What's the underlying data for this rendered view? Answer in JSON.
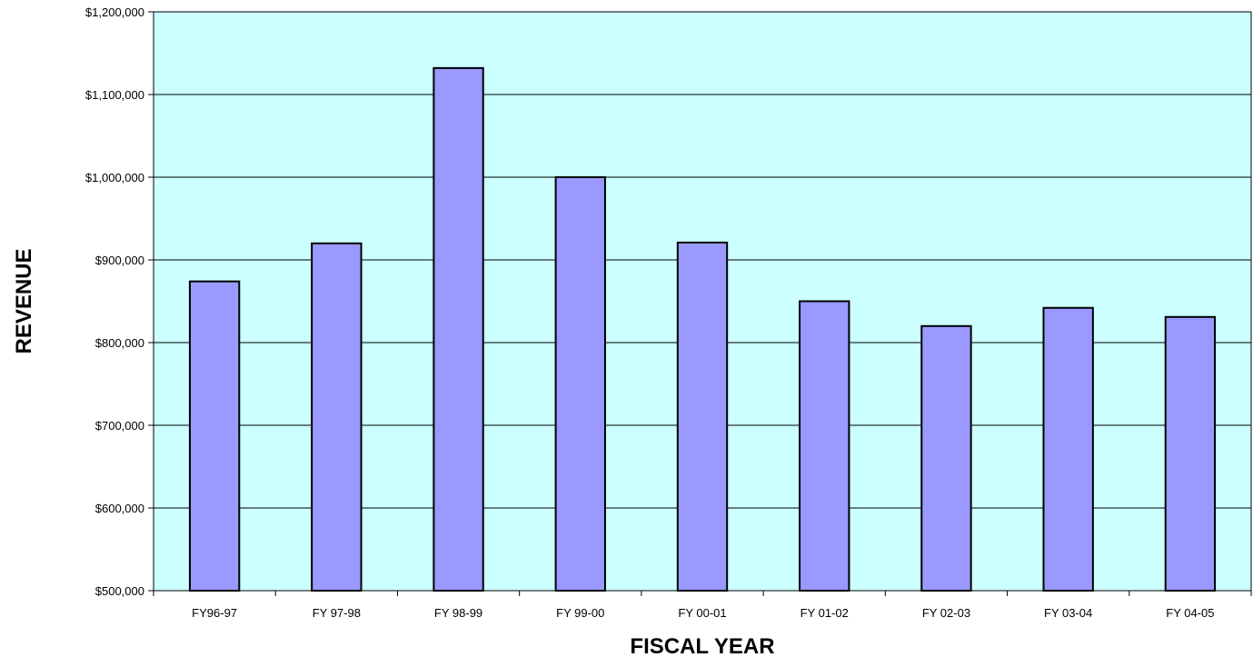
{
  "chart_data": {
    "type": "bar",
    "title": "",
    "xlabel": "FISCAL YEAR",
    "ylabel": "REVENUE",
    "categories": [
      "FY96-97",
      "FY 97-98",
      "FY 98-99",
      "FY 99-00",
      "FY 00-01",
      "FY 01-02",
      "FY 02-03",
      "FY 03-04",
      "FY 04-05"
    ],
    "values": [
      874000,
      920000,
      1132000,
      1000000,
      921000,
      850000,
      820000,
      842000,
      831000
    ],
    "ylim": [
      500000,
      1200000
    ],
    "yticks": [
      500000,
      600000,
      700000,
      800000,
      900000,
      1000000,
      1100000,
      1200000
    ],
    "ytick_labels": [
      "$500,000",
      "$600,000",
      "$700,000",
      "$800,000",
      "$900,000",
      "$1,000,000",
      "$1,100,000",
      "$1,200,000"
    ],
    "grid": true,
    "legend": "none",
    "colors": {
      "plot_background": "#ccffff",
      "bar_fill": "#9999ff",
      "bar_stroke": "#000000",
      "grid": "#000000"
    }
  }
}
